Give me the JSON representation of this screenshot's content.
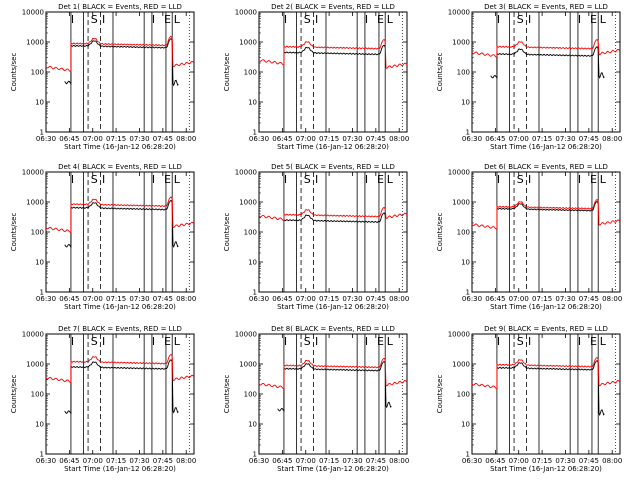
{
  "layout_note": "",
  "colors": {
    "events": "#000000",
    "lld": "#ff0000",
    "axis": "#000000",
    "background": "#ffffff"
  },
  "shared_axes": {
    "ylabel": "Counts/sec",
    "xlabel": "Start Time (16-Jan-12 06:28:20)",
    "x_tick_labels": [
      "06:30",
      "06:45",
      "07:00",
      "07:15",
      "07:30",
      "07:45",
      "08:00"
    ],
    "y_tick_labels": [
      "1",
      "10",
      "100",
      "1000",
      "10000"
    ],
    "y_scale": "log",
    "ylim": [
      1,
      10000
    ],
    "xlim": [
      "06:30",
      "08:05"
    ]
  },
  "markers": {
    "solid_lines": [
      "06:46",
      "06:54",
      "07:13",
      "07:33",
      "07:38",
      "07:47",
      "07:51"
    ],
    "dashed_lines": [
      "06:57",
      "07:05"
    ],
    "dotted_lines": [
      "08:02"
    ],
    "letters": [
      {
        "text": "I",
        "at": "06:47"
      },
      {
        "text": "S",
        "at": "07:01"
      },
      {
        "text": "I",
        "at": "07:07"
      },
      {
        "text": "I",
        "at": "07:39"
      },
      {
        "text": "E",
        "at": "07:48"
      },
      {
        "text": "L",
        "at": "07:54"
      }
    ]
  },
  "chart_data": [
    {
      "type": "line",
      "title": "Det 1( BLACK = Events, RED = LLD",
      "xlabel": "Start Time (16-Jan-12 06:28:20)",
      "ylabel": "Counts/sec",
      "series": [
        {
          "name": "Events",
          "color": "#000000",
          "level": 750,
          "pre": 45,
          "post": 45
        },
        {
          "name": "LLD",
          "color": "#ff0000",
          "level": 900,
          "pre": 150,
          "post": 160
        }
      ]
    },
    {
      "type": "line",
      "title": "Det 2( BLACK = Events, RED = LLD",
      "xlabel": "Start Time (16-Jan-12 06:28:20)",
      "ylabel": "Counts/sec",
      "series": [
        {
          "name": "Events",
          "color": "#000000",
          "level": 450,
          "pre": 0,
          "post": 0
        },
        {
          "name": "LLD",
          "color": "#ff0000",
          "level": 700,
          "pre": 250,
          "post": 140
        }
      ]
    },
    {
      "type": "line",
      "title": "Det 3( BLACK = Events, RED = LLD",
      "xlabel": "Start Time (16-Jan-12 06:28:20)",
      "ylabel": "Counts/sec",
      "series": [
        {
          "name": "Events",
          "color": "#000000",
          "level": 400,
          "pre": 70,
          "post": 80
        },
        {
          "name": "LLD",
          "color": "#ff0000",
          "level": 700,
          "pre": 450,
          "post": 400
        }
      ]
    },
    {
      "type": "line",
      "title": "Det 4( BLACK = Events, RED = LLD",
      "xlabel": "Start Time (16-Jan-12 06:28:20)",
      "ylabel": "Counts/sec",
      "series": [
        {
          "name": "Events",
          "color": "#000000",
          "level": 650,
          "pre": 35,
          "post": 40
        },
        {
          "name": "LLD",
          "color": "#ff0000",
          "level": 850,
          "pre": 140,
          "post": 150
        }
      ]
    },
    {
      "type": "line",
      "title": "Det 5( BLACK = Events, RED = LLD",
      "xlabel": "Start Time (16-Jan-12 06:28:20)",
      "ylabel": "Counts/sec",
      "series": [
        {
          "name": "Events",
          "color": "#000000",
          "level": 250,
          "pre": 0,
          "post": 0
        },
        {
          "name": "LLD",
          "color": "#ff0000",
          "level": 380,
          "pre": 350,
          "post": 300
        }
      ]
    },
    {
      "type": "line",
      "title": "Det 6( BLACK = Events, RED = LLD",
      "xlabel": "Start Time (16-Jan-12 06:28:20)",
      "ylabel": "Counts/sec",
      "series": [
        {
          "name": "Events",
          "color": "#000000",
          "level": 600,
          "pre": 0,
          "post": 0
        },
        {
          "name": "LLD",
          "color": "#ff0000",
          "level": 700,
          "pre": 180,
          "post": 180
        }
      ]
    },
    {
      "type": "line",
      "title": "Det 7( BLACK = Events, RED = LLD",
      "xlabel": "Start Time (16-Jan-12 06:28:20)",
      "ylabel": "Counts/sec",
      "series": [
        {
          "name": "Events",
          "color": "#000000",
          "level": 800,
          "pre": 25,
          "post": 30
        },
        {
          "name": "LLD",
          "color": "#ff0000",
          "level": 1200,
          "pre": 350,
          "post": 300
        }
      ]
    },
    {
      "type": "line",
      "title": "Det 8( BLACK = Events, RED = LLD",
      "xlabel": "Start Time (16-Jan-12 06:28:20)",
      "ylabel": "Counts/sec",
      "series": [
        {
          "name": "Events",
          "color": "#000000",
          "level": 700,
          "pre": 30,
          "post": 45
        },
        {
          "name": "LLD",
          "color": "#ff0000",
          "level": 900,
          "pre": 220,
          "post": 200
        }
      ]
    },
    {
      "type": "line",
      "title": "Det 9( BLACK = Events, RED = LLD",
      "xlabel": "Start Time (16-Jan-12 06:28:20)",
      "ylabel": "Counts/sec",
      "series": [
        {
          "name": "Events",
          "color": "#000000",
          "level": 750,
          "pre": 0,
          "post": 25
        },
        {
          "name": "LLD",
          "color": "#ff0000",
          "level": 950,
          "pre": 220,
          "post": 200
        }
      ]
    }
  ]
}
